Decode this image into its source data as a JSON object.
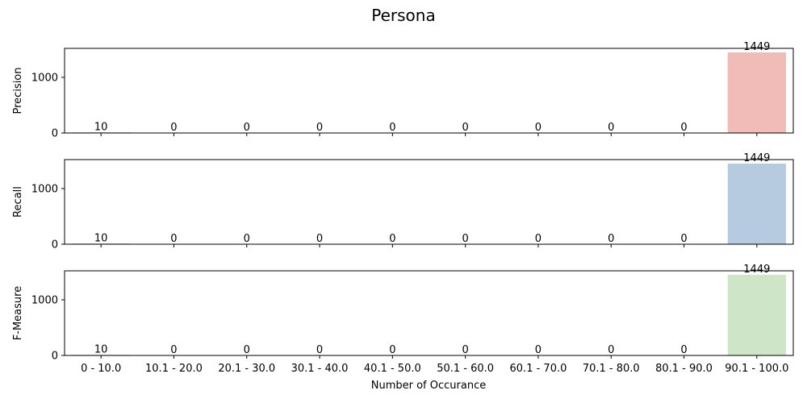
{
  "chart_data": {
    "type": "bar",
    "title": "Persona",
    "xlabel": "Number of Occurance",
    "categories": [
      "0 - 10.0",
      "10.1 - 20.0",
      "20.1 - 30.0",
      "30.1 - 40.0",
      "40.1 - 50.0",
      "50.1 - 60.0",
      "60.1 - 70.0",
      "70.1 - 80.0",
      "80.1 - 90.0",
      "90.1 - 100.0"
    ],
    "ylim": [
      0,
      1521
    ],
    "yticks": [
      0,
      1000
    ],
    "grid": false,
    "panels": [
      {
        "ylabel": "Precision",
        "values": [
          10,
          0,
          0,
          0,
          0,
          0,
          0,
          0,
          0,
          1449
        ],
        "bar_color": "#f1bbb7",
        "low_bar_color": "#e0837d"
      },
      {
        "ylabel": "Recall",
        "values": [
          10,
          0,
          0,
          0,
          0,
          0,
          0,
          0,
          0,
          1449
        ],
        "bar_color": "#b6cbdf",
        "low_bar_color": "#8ea9c6"
      },
      {
        "ylabel": "F-Measure",
        "values": [
          10,
          0,
          0,
          0,
          0,
          0,
          0,
          0,
          0,
          1449
        ],
        "bar_color": "#cfe5c8",
        "low_bar_color": "#9fcf92"
      }
    ]
  }
}
